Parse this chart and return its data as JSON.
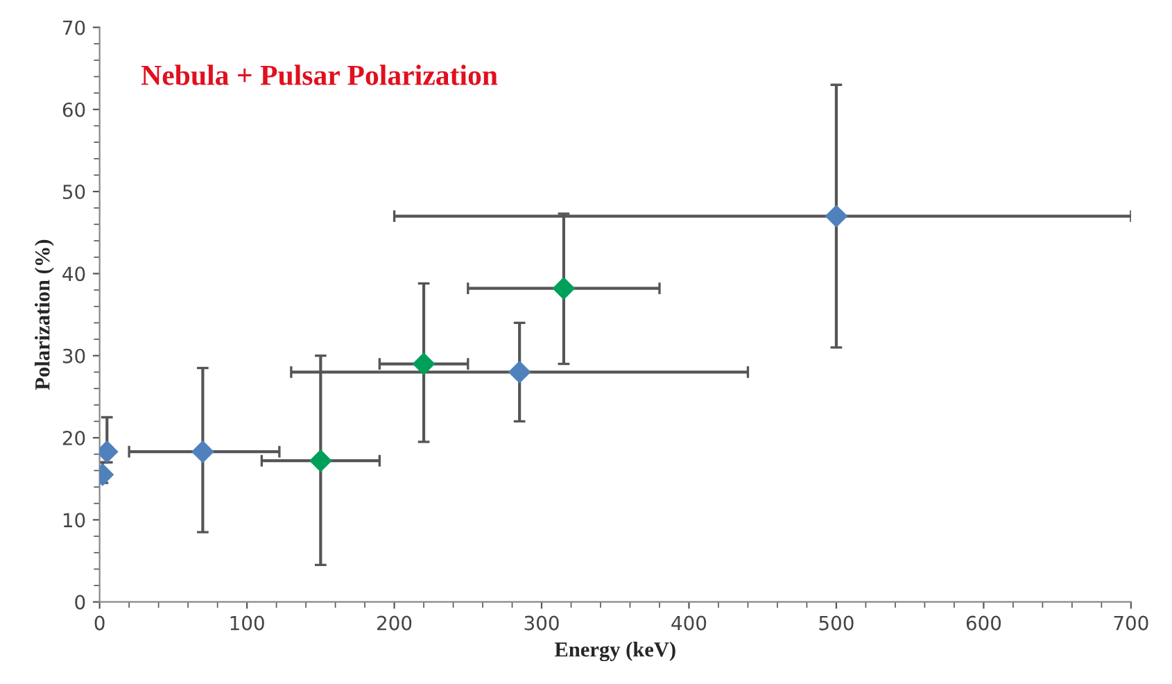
{
  "chart_data": {
    "type": "scatter",
    "title": "Nebula + Pulsar Polarization",
    "xlabel": "Energy (keV)",
    "ylabel": "Polarization (%)",
    "xlim": [
      0,
      700
    ],
    "xticks": [
      0,
      100,
      200,
      300,
      400,
      500,
      600,
      700
    ],
    "ylim": [
      0,
      70
    ],
    "yticks": [
      0,
      10,
      20,
      30,
      40,
      50,
      60,
      70
    ],
    "grid": false,
    "legend": false,
    "marker": "diamond",
    "series": [
      {
        "color": "#4f81bd",
        "x": [
          2,
          5,
          70,
          285,
          500
        ],
        "values": [
          15.5,
          18.3,
          18.3,
          28,
          47
        ],
        "errors": [
          [
            14.5,
            17
          ],
          [
            17,
            22.5
          ],
          [
            8.5,
            28.5
          ],
          [
            22,
            34
          ],
          [
            31,
            63
          ]
        ],
        "xerrors": [
          null,
          null,
          [
            20,
            122
          ],
          [
            130,
            440
          ],
          [
            200,
            700
          ]
        ]
      },
      {
        "color": "#00a05a",
        "x": [
          150,
          220,
          315
        ],
        "values": [
          17.2,
          29,
          38.2
        ],
        "errors": [
          [
            4.5,
            30
          ],
          [
            19.5,
            38.8
          ],
          [
            29,
            47.3
          ]
        ],
        "xerrors": [
          [
            110,
            190
          ],
          [
            190,
            250
          ],
          [
            250,
            380
          ]
        ]
      }
    ]
  }
}
